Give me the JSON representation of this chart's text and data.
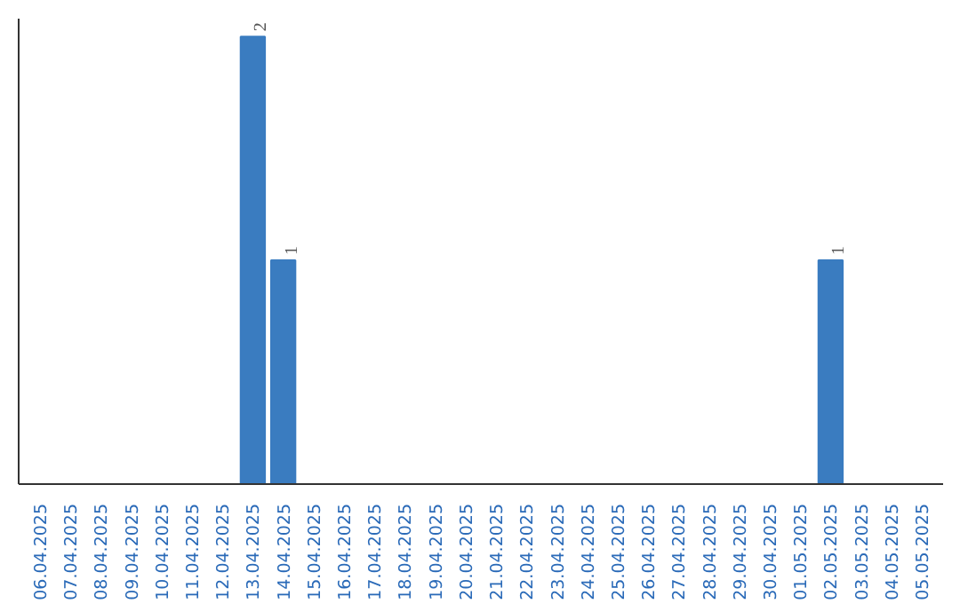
{
  "chart_data": {
    "type": "bar",
    "categories": [
      "06.04.2025",
      "07.04.2025",
      "08.04.2025",
      "09.04.2025",
      "10.04.2025",
      "11.04.2025",
      "12.04.2025",
      "13.04.2025",
      "14.04.2025",
      "15.04.2025",
      "16.04.2025",
      "17.04.2025",
      "18.04.2025",
      "19.04.2025",
      "20.04.2025",
      "21.04.2025",
      "22.04.2025",
      "23.04.2025",
      "24.04.2025",
      "25.04.2025",
      "26.04.2025",
      "27.04.2025",
      "28.04.2025",
      "29.04.2025",
      "30.04.2025",
      "01.05.2025",
      "02.05.2025",
      "03.05.2025",
      "04.05.2025",
      "05.05.2025"
    ],
    "values": [
      0,
      0,
      0,
      0,
      0,
      0,
      0,
      2,
      1,
      0,
      0,
      0,
      0,
      0,
      0,
      0,
      0,
      0,
      0,
      0,
      0,
      0,
      0,
      0,
      0,
      0,
      1,
      0,
      0,
      0
    ],
    "value_labels": [
      null,
      null,
      null,
      null,
      null,
      null,
      null,
      "2",
      "1",
      null,
      null,
      null,
      null,
      null,
      null,
      null,
      null,
      null,
      null,
      null,
      null,
      null,
      null,
      null,
      null,
      null,
      "1",
      null,
      null,
      null
    ],
    "color": "#3a7cc0",
    "tick_labels": "x"
  }
}
